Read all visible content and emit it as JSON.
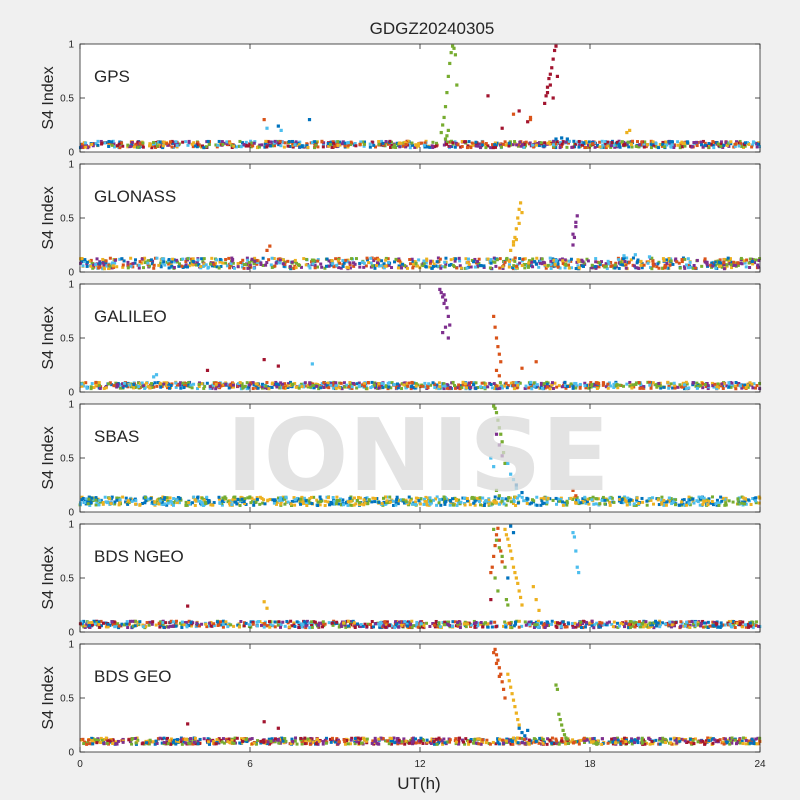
{
  "figure": {
    "title": "GDGZ20240305",
    "watermark": "IONISE",
    "xlabel": "UT(h)",
    "background_color": "#f0f0f0",
    "panel_color": "#ffffff"
  },
  "chart_data": [
    {
      "type": "scatter",
      "panel_label": "GPS",
      "ylabel": "S4 Index",
      "xlim": [
        0,
        24
      ],
      "ylim": [
        0,
        1
      ],
      "xticks": [
        0,
        6,
        12,
        18,
        24
      ],
      "yticks": [
        0,
        0.5,
        1
      ],
      "xtick_labels": [
        "",
        "",
        "",
        "",
        ""
      ],
      "ytick_labels": [
        "0",
        "0.5",
        "1"
      ],
      "baseline": {
        "center": 0.07,
        "amplitude": 0.03
      },
      "baseline_colors": [
        "#0072bd",
        "#d95319",
        "#edb120",
        "#7e2f8e",
        "#77ac30",
        "#4dbeee",
        "#a2142f"
      ],
      "series": [
        {
          "color": "#77ac30",
          "x": [
            12.75,
            12.8,
            12.85,
            12.9,
            12.95,
            13.0,
            13.05,
            13.1,
            13.15,
            13.2,
            13.25,
            13.3,
            12.9,
            12.95,
            13.0
          ],
          "y": [
            0.18,
            0.25,
            0.32,
            0.42,
            0.55,
            0.7,
            0.82,
            0.92,
            0.98,
            0.96,
            0.9,
            0.62,
            0.12,
            0.15,
            0.2
          ]
        },
        {
          "color": "#a2142f",
          "x": [
            16.4,
            16.45,
            16.5,
            16.55,
            16.6,
            16.65,
            16.7,
            16.75,
            16.8,
            16.85,
            16.5,
            16.6,
            16.7,
            14.4,
            15.5,
            15.8,
            14.9
          ],
          "y": [
            0.45,
            0.52,
            0.6,
            0.68,
            0.72,
            0.78,
            0.86,
            0.94,
            0.98,
            0.7,
            0.55,
            0.62,
            0.5,
            0.52,
            0.38,
            0.28,
            0.22
          ]
        },
        {
          "color": "#d95319",
          "x": [
            6.5,
            15.3,
            15.9,
            15.9
          ],
          "y": [
            0.3,
            0.35,
            0.32,
            0.3
          ]
        },
        {
          "color": "#0072bd",
          "x": [
            7.0,
            8.1,
            16.8,
            17.0,
            17.2
          ],
          "y": [
            0.24,
            0.3,
            0.12,
            0.13,
            0.12
          ]
        },
        {
          "color": "#4dbeee",
          "x": [
            6.6,
            7.1
          ],
          "y": [
            0.22,
            0.2
          ]
        },
        {
          "color": "#edb120",
          "x": [
            19.3,
            19.4
          ],
          "y": [
            0.18,
            0.2
          ]
        }
      ]
    },
    {
      "type": "scatter",
      "panel_label": "GLONASS",
      "ylabel": "S4 Index",
      "xlim": [
        0,
        24
      ],
      "ylim": [
        0,
        1
      ],
      "xticks": [
        0,
        6,
        12,
        18,
        24
      ],
      "yticks": [
        0,
        0.5,
        1
      ],
      "xtick_labels": [
        "",
        "",
        "",
        "",
        ""
      ],
      "ytick_labels": [
        "0",
        "0.5",
        "1"
      ],
      "baseline": {
        "center": 0.08,
        "amplitude": 0.05
      },
      "baseline_colors": [
        "#d95319",
        "#0072bd",
        "#4dbeee",
        "#edb120",
        "#77ac30",
        "#7e2f8e"
      ],
      "series": [
        {
          "color": "#edb120",
          "x": [
            15.3,
            15.35,
            15.4,
            15.45,
            15.5,
            15.55,
            15.6,
            15.4,
            15.5,
            15.2,
            15.3
          ],
          "y": [
            0.25,
            0.32,
            0.4,
            0.5,
            0.58,
            0.64,
            0.55,
            0.3,
            0.45,
            0.2,
            0.28
          ]
        },
        {
          "color": "#7e2f8e",
          "x": [
            17.4,
            17.45,
            17.5,
            17.55,
            17.4,
            17.5
          ],
          "y": [
            0.25,
            0.32,
            0.42,
            0.52,
            0.35,
            0.46
          ]
        },
        {
          "color": "#d95319",
          "x": [
            6.6,
            6.7
          ],
          "y": [
            0.2,
            0.24
          ]
        },
        {
          "color": "#4dbeee",
          "x": [
            19.2,
            19.6,
            20.1
          ],
          "y": [
            0.15,
            0.16,
            0.14
          ]
        }
      ]
    },
    {
      "type": "scatter",
      "panel_label": "GALILEO",
      "ylabel": "S4 Index",
      "xlim": [
        0,
        24
      ],
      "ylim": [
        0,
        1
      ],
      "xticks": [
        0,
        6,
        12,
        18,
        24
      ],
      "yticks": [
        0,
        0.5,
        1
      ],
      "xtick_labels": [
        "",
        "",
        "",
        "",
        ""
      ],
      "ytick_labels": [
        "0",
        "0.5",
        "1"
      ],
      "baseline": {
        "center": 0.06,
        "amplitude": 0.03
      },
      "baseline_colors": [
        "#0072bd",
        "#d95319",
        "#4dbeee",
        "#edb120",
        "#77ac30",
        "#7e2f8e"
      ],
      "series": [
        {
          "color": "#7e2f8e",
          "x": [
            12.7,
            12.75,
            12.8,
            12.85,
            12.9,
            12.95,
            13.0,
            13.05,
            12.8,
            12.9,
            13.0,
            12.85
          ],
          "y": [
            0.95,
            0.92,
            0.88,
            0.9,
            0.85,
            0.78,
            0.7,
            0.62,
            0.55,
            0.6,
            0.5,
            0.82
          ]
        },
        {
          "color": "#d95319",
          "x": [
            14.6,
            14.65,
            14.7,
            14.75,
            14.8,
            14.85,
            14.7,
            14.8,
            15.6,
            16.1
          ],
          "y": [
            0.7,
            0.6,
            0.5,
            0.42,
            0.35,
            0.28,
            0.2,
            0.15,
            0.22,
            0.28
          ]
        },
        {
          "color": "#a2142f",
          "x": [
            4.5,
            6.5,
            7.0
          ],
          "y": [
            0.2,
            0.3,
            0.24
          ]
        },
        {
          "color": "#4dbeee",
          "x": [
            8.2,
            2.6,
            2.7
          ],
          "y": [
            0.26,
            0.14,
            0.16
          ]
        }
      ]
    },
    {
      "type": "scatter",
      "panel_label": "SBAS",
      "ylabel": "S4 Index",
      "xlim": [
        0,
        24
      ],
      "ylim": [
        0,
        1
      ],
      "xticks": [
        0,
        6,
        12,
        18,
        24
      ],
      "yticks": [
        0,
        0.5,
        1
      ],
      "xtick_labels": [
        "",
        "",
        "",
        "",
        ""
      ],
      "ytick_labels": [
        "0",
        "0.5",
        "1"
      ],
      "baseline": {
        "center": 0.1,
        "amplitude": 0.04
      },
      "baseline_colors": [
        "#0072bd",
        "#4dbeee",
        "#77ac30",
        "#edb120"
      ],
      "series": [
        {
          "color": "#77ac30",
          "x": [
            14.6,
            14.65,
            14.7,
            14.75,
            14.8,
            14.85,
            14.9,
            14.95,
            15.0,
            14.7,
            14.8
          ],
          "y": [
            0.98,
            0.96,
            0.92,
            0.85,
            0.78,
            0.72,
            0.65,
            0.55,
            0.45,
            0.2,
            0.15
          ]
        },
        {
          "color": "#7e2f8e",
          "x": [
            14.7,
            14.8,
            14.9
          ],
          "y": [
            0.72,
            0.62,
            0.52
          ]
        },
        {
          "color": "#4dbeee",
          "x": [
            15.1,
            15.2,
            15.3,
            15.4,
            15.5,
            14.5,
            14.6
          ],
          "y": [
            0.45,
            0.35,
            0.3,
            0.22,
            0.15,
            0.5,
            0.42
          ]
        },
        {
          "color": "#0072bd",
          "x": [
            15.4,
            15.6,
            15.8
          ],
          "y": [
            0.25,
            0.18,
            0.12
          ]
        },
        {
          "color": "#d95319",
          "x": [
            17.4,
            17.5
          ],
          "y": [
            0.2,
            0.15
          ]
        }
      ]
    },
    {
      "type": "scatter",
      "panel_label": "BDS NGEO",
      "ylabel": "S4 Index",
      "xlim": [
        0,
        24
      ],
      "ylim": [
        0,
        1
      ],
      "xticks": [
        0,
        6,
        12,
        18,
        24
      ],
      "yticks": [
        0,
        0.5,
        1
      ],
      "xtick_labels": [
        "",
        "",
        "",
        "",
        ""
      ],
      "ytick_labels": [
        "0",
        "0.5",
        "1"
      ],
      "baseline": {
        "center": 0.07,
        "amplitude": 0.03
      },
      "baseline_colors": [
        "#a2142f",
        "#0072bd",
        "#d95319",
        "#edb120",
        "#4dbeee",
        "#7e2f8e",
        "#77ac30"
      ],
      "series": [
        {
          "color": "#edb120",
          "x": [
            15.0,
            15.05,
            15.1,
            15.15,
            15.2,
            15.25,
            15.3,
            15.35,
            15.4,
            15.45,
            15.5,
            15.55,
            15.6,
            16.0,
            16.1,
            16.2
          ],
          "y": [
            0.95,
            0.9,
            0.86,
            0.8,
            0.75,
            0.68,
            0.6,
            0.55,
            0.5,
            0.45,
            0.38,
            0.32,
            0.25,
            0.42,
            0.3,
            0.2
          ]
        },
        {
          "color": "#d95319",
          "x": [
            14.5,
            14.55,
            14.6,
            14.65,
            14.7,
            14.75,
            14.8,
            14.85,
            14.9
          ],
          "y": [
            0.55,
            0.6,
            0.7,
            0.8,
            0.9,
            0.96,
            0.85,
            0.75,
            0.65
          ]
        },
        {
          "color": "#77ac30",
          "x": [
            14.6,
            14.7,
            14.8,
            14.9,
            15.0,
            14.65,
            14.75,
            15.05,
            15.1
          ],
          "y": [
            0.95,
            0.85,
            0.78,
            0.7,
            0.6,
            0.5,
            0.38,
            0.3,
            0.25
          ]
        },
        {
          "color": "#0072bd",
          "x": [
            15.2,
            15.3,
            15.1
          ],
          "y": [
            0.98,
            0.92,
            0.5
          ]
        },
        {
          "color": "#4dbeee",
          "x": [
            17.4,
            17.45,
            17.5,
            17.55,
            17.6
          ],
          "y": [
            0.92,
            0.88,
            0.75,
            0.6,
            0.55
          ]
        },
        {
          "color": "#a2142f",
          "x": [
            3.8,
            14.5
          ],
          "y": [
            0.24,
            0.3
          ]
        },
        {
          "color": "#edb120",
          "x": [
            6.5,
            6.6
          ],
          "y": [
            0.28,
            0.22
          ]
        }
      ]
    },
    {
      "type": "scatter",
      "panel_label": "BDS GEO",
      "ylabel": "S4 Index",
      "xlim": [
        0,
        24
      ],
      "ylim": [
        0,
        1
      ],
      "xticks": [
        0,
        6,
        12,
        18,
        24
      ],
      "yticks": [
        0,
        0.5,
        1
      ],
      "xtick_labels": [
        "0",
        "6",
        "12",
        "18",
        "24"
      ],
      "ytick_labels": [
        "0",
        "0.5",
        "1"
      ],
      "baseline": {
        "center": 0.1,
        "amplitude": 0.03
      },
      "baseline_colors": [
        "#7e2f8e",
        "#d95319",
        "#edb120",
        "#0072bd",
        "#a2142f",
        "#77ac30"
      ],
      "series": [
        {
          "color": "#d95319",
          "x": [
            14.6,
            14.65,
            14.7,
            14.75,
            14.8,
            14.85,
            14.9,
            14.95,
            15.0,
            14.7,
            14.8
          ],
          "y": [
            0.92,
            0.95,
            0.9,
            0.85,
            0.78,
            0.72,
            0.65,
            0.58,
            0.5,
            0.82,
            0.7
          ]
        },
        {
          "color": "#edb120",
          "x": [
            15.1,
            15.15,
            15.2,
            15.25,
            15.3,
            15.35,
            15.4,
            15.45,
            15.5
          ],
          "y": [
            0.72,
            0.66,
            0.6,
            0.54,
            0.48,
            0.42,
            0.36,
            0.3,
            0.25
          ]
        },
        {
          "color": "#77ac30",
          "x": [
            16.8,
            16.85,
            16.9,
            16.95,
            17.0,
            17.05,
            17.1,
            17.15,
            17.2
          ],
          "y": [
            0.62,
            0.58,
            0.35,
            0.3,
            0.25,
            0.2,
            0.16,
            0.13,
            0.12
          ]
        },
        {
          "color": "#0072bd",
          "x": [
            15.5,
            15.6,
            15.7,
            15.8
          ],
          "y": [
            0.22,
            0.18,
            0.15,
            0.2
          ]
        },
        {
          "color": "#a2142f",
          "x": [
            3.8,
            6.5,
            7.0
          ],
          "y": [
            0.26,
            0.28,
            0.22
          ]
        }
      ]
    }
  ]
}
